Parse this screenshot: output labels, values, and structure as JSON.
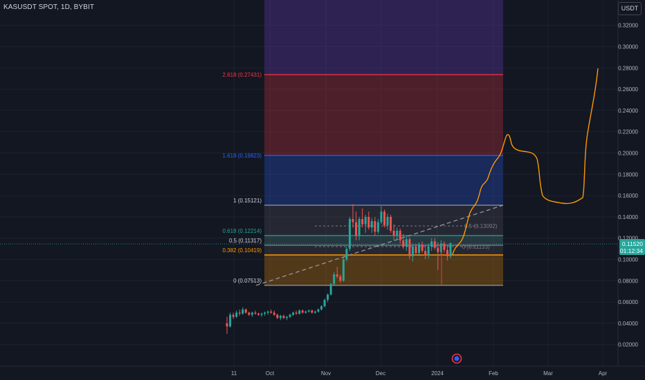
{
  "header": {
    "symbol": "KASUSDT SPOT, 1D, BYBIT",
    "currency": "USDT"
  },
  "price_badge": {
    "price": "0.11520",
    "countdown": "01:12:34",
    "color": "#26a69a"
  },
  "fib_levels": [
    {
      "label": "2.618 (0.27431)",
      "color": "#f23645"
    },
    {
      "label": "1.618 (0.19823)",
      "color": "#2962ff"
    },
    {
      "label": "1 (0.15121)",
      "color": "#d1d4dc"
    },
    {
      "label": "0.618 (0.12214)",
      "color": "#26a69a"
    },
    {
      "label": "0.5 (0.11317)",
      "color": "#d1d4dc"
    },
    {
      "label": "0.382 (0.10419)",
      "color": "#ff9800"
    },
    {
      "label": "0 (0.07513)",
      "color": "#d1d4dc"
    }
  ],
  "fib_zone_colors": {
    "top": "#673ab7",
    "band_2618": "#f23645",
    "band_1618": "#2962ff",
    "band_1": "#787b86",
    "band_0382": "#ff9800"
  },
  "inner_labels": {
    "half": "0.5 (0.13092)",
    "zero": "0 (0.11133)"
  },
  "chart_data": {
    "type": "candlestick",
    "symbol": "KASUSDT",
    "interval": "1D",
    "exchange": "BYBIT",
    "y_axis": {
      "range": [
        0.008,
        0.355
      ],
      "tick_labels": [
        "0.32000",
        "0.30000",
        "0.28000",
        "0.26000",
        "0.24000",
        "0.22000",
        "0.20000",
        "0.18000",
        "0.16000",
        "0.14000",
        "0.12000",
        "0.10000",
        "0.08000",
        "0.06000",
        "0.04000",
        "0.02000"
      ],
      "ticks": [
        0.32,
        0.3,
        0.28,
        0.26,
        0.24,
        0.22,
        0.2,
        0.18,
        0.16,
        0.14,
        0.12,
        0.1,
        0.08,
        0.06,
        0.04,
        0.02
      ]
    },
    "x_axis": {
      "tick_labels": [
        "11",
        "Oct",
        "Nov",
        "Dec",
        "2024",
        "Feb",
        "Mar",
        "Apr"
      ]
    },
    "current_price": 0.1152,
    "fib_retracement": {
      "start": 0.07513,
      "end": 0.15121,
      "levels": [
        {
          "ratio": 2.618,
          "price": 0.27431
        },
        {
          "ratio": 1.618,
          "price": 0.19823
        },
        {
          "ratio": 1,
          "price": 0.15121
        },
        {
          "ratio": 0.618,
          "price": 0.12214
        },
        {
          "ratio": 0.5,
          "price": 0.11317
        },
        {
          "ratio": 0.382,
          "price": 0.10419
        },
        {
          "ratio": 0,
          "price": 0.07513
        }
      ]
    },
    "inner_fib": [
      {
        "ratio": 0.5,
        "price": 0.13092
      },
      {
        "ratio": 0,
        "price": 0.11133
      }
    ],
    "candles": [
      [
        0.04,
        0.046,
        0.03,
        0.037
      ],
      [
        0.037,
        0.05,
        0.036,
        0.048
      ],
      [
        0.048,
        0.05,
        0.044,
        0.046
      ],
      [
        0.046,
        0.052,
        0.045,
        0.05
      ],
      [
        0.05,
        0.053,
        0.047,
        0.049
      ],
      [
        0.049,
        0.055,
        0.048,
        0.053
      ],
      [
        0.053,
        0.054,
        0.049,
        0.05
      ],
      [
        0.05,
        0.051,
        0.047,
        0.048
      ],
      [
        0.048,
        0.051,
        0.046,
        0.05
      ],
      [
        0.05,
        0.052,
        0.048,
        0.049
      ],
      [
        0.049,
        0.05,
        0.047,
        0.048
      ],
      [
        0.048,
        0.05,
        0.046,
        0.049
      ],
      [
        0.049,
        0.051,
        0.047,
        0.05
      ],
      [
        0.05,
        0.052,
        0.048,
        0.051
      ],
      [
        0.051,
        0.053,
        0.049,
        0.05
      ],
      [
        0.05,
        0.052,
        0.047,
        0.048
      ],
      [
        0.048,
        0.049,
        0.044,
        0.045
      ],
      [
        0.045,
        0.048,
        0.043,
        0.047
      ],
      [
        0.047,
        0.048,
        0.044,
        0.045
      ],
      [
        0.045,
        0.047,
        0.043,
        0.046
      ],
      [
        0.046,
        0.049,
        0.045,
        0.048
      ],
      [
        0.048,
        0.051,
        0.047,
        0.05
      ],
      [
        0.05,
        0.052,
        0.048,
        0.049
      ],
      [
        0.049,
        0.053,
        0.048,
        0.052
      ],
      [
        0.052,
        0.053,
        0.049,
        0.05
      ],
      [
        0.05,
        0.052,
        0.049,
        0.051
      ],
      [
        0.051,
        0.053,
        0.05,
        0.052
      ],
      [
        0.052,
        0.053,
        0.049,
        0.05
      ],
      [
        0.05,
        0.052,
        0.049,
        0.051
      ],
      [
        0.051,
        0.054,
        0.05,
        0.053
      ],
      [
        0.053,
        0.057,
        0.052,
        0.056
      ],
      [
        0.056,
        0.063,
        0.055,
        0.062
      ],
      [
        0.062,
        0.068,
        0.06,
        0.067
      ],
      [
        0.067,
        0.078,
        0.066,
        0.077
      ],
      [
        0.077,
        0.088,
        0.075,
        0.086
      ],
      [
        0.086,
        0.093,
        0.082,
        0.084
      ],
      [
        0.084,
        0.086,
        0.078,
        0.08
      ],
      [
        0.08,
        0.102,
        0.079,
        0.1
      ],
      [
        0.1,
        0.112,
        0.098,
        0.11
      ],
      [
        0.11,
        0.14,
        0.108,
        0.138
      ],
      [
        0.138,
        0.152,
        0.13,
        0.135
      ],
      [
        0.135,
        0.145,
        0.118,
        0.122
      ],
      [
        0.122,
        0.14,
        0.118,
        0.138
      ],
      [
        0.138,
        0.148,
        0.13,
        0.133
      ],
      [
        0.133,
        0.142,
        0.125,
        0.14
      ],
      [
        0.14,
        0.145,
        0.128,
        0.13
      ],
      [
        0.13,
        0.139,
        0.125,
        0.136
      ],
      [
        0.136,
        0.14,
        0.122,
        0.126
      ],
      [
        0.126,
        0.138,
        0.124,
        0.135
      ],
      [
        0.135,
        0.15,
        0.133,
        0.145
      ],
      [
        0.145,
        0.147,
        0.13,
        0.132
      ],
      [
        0.132,
        0.143,
        0.128,
        0.14
      ],
      [
        0.14,
        0.142,
        0.125,
        0.127
      ],
      [
        0.127,
        0.133,
        0.118,
        0.122
      ],
      [
        0.122,
        0.13,
        0.119,
        0.127
      ],
      [
        0.127,
        0.129,
        0.115,
        0.118
      ],
      [
        0.118,
        0.124,
        0.11,
        0.112
      ],
      [
        0.112,
        0.122,
        0.108,
        0.119
      ],
      [
        0.119,
        0.121,
        0.1,
        0.103
      ],
      [
        0.103,
        0.115,
        0.098,
        0.112
      ],
      [
        0.112,
        0.115,
        0.104,
        0.106
      ],
      [
        0.106,
        0.116,
        0.103,
        0.114
      ],
      [
        0.114,
        0.117,
        0.106,
        0.108
      ],
      [
        0.108,
        0.113,
        0.1,
        0.104
      ],
      [
        0.104,
        0.115,
        0.101,
        0.112
      ],
      [
        0.112,
        0.12,
        0.108,
        0.117
      ],
      [
        0.117,
        0.12,
        0.109,
        0.111
      ],
      [
        0.111,
        0.116,
        0.09,
        0.107
      ],
      [
        0.107,
        0.118,
        0.104,
        0.115
      ],
      [
        0.115,
        0.117,
        0.106,
        0.109
      ],
      [
        0.109,
        0.114,
        0.099,
        0.103
      ],
      [
        0.103,
        0.116,
        0.101,
        0.1152
      ]
    ]
  }
}
